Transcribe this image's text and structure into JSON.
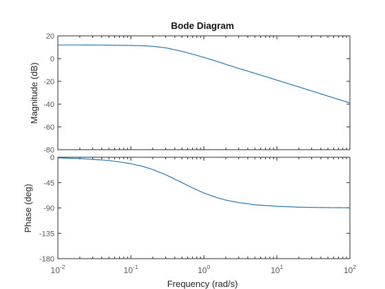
{
  "chart_data": {
    "type": "line",
    "title": "Bode Diagram",
    "xlabel": "Frequency  (rad/s)",
    "xscale": "log",
    "xlim": [
      0.01,
      100
    ],
    "xticks": [
      {
        "value": 0.01,
        "base": "10",
        "exp": "-2"
      },
      {
        "value": 0.1,
        "base": "10",
        "exp": "-1"
      },
      {
        "value": 1,
        "base": "10",
        "exp": "0"
      },
      {
        "value": 10,
        "base": "10",
        "exp": "1"
      },
      {
        "value": 100,
        "base": "10",
        "exp": "2"
      }
    ],
    "line_color": "#1f77b4",
    "grid": false,
    "panels": [
      {
        "ylabel": "Magnitude (dB)",
        "ylim": [
          -80,
          20
        ],
        "yticks": [
          20,
          0,
          -20,
          -40,
          -60,
          -80
        ],
        "series": [
          {
            "x": [
              0.01,
              0.02,
              0.05,
              0.1,
              0.15,
              0.2,
              0.3,
              0.5,
              0.7,
              1,
              1.5,
              2,
              3,
              5,
              10,
              20,
              50,
              100
            ],
            "y": [
              12,
              12,
              11.9,
              11.6,
              11.3,
              10.8,
              9.5,
              6.4,
              3.9,
              1.1,
              -2.4,
              -5.0,
              -8.6,
              -12.9,
              -18.9,
              -24.9,
              -32.9,
              -38.9
            ]
          }
        ]
      },
      {
        "ylabel": "Phase (deg)",
        "ylim": [
          -180,
          0
        ],
        "yticks": [
          0,
          -45,
          -90,
          -135,
          -180
        ],
        "series": [
          {
            "x": [
              0.01,
              0.02,
              0.05,
              0.1,
              0.15,
              0.2,
              0.3,
              0.5,
              0.7,
              1,
              1.5,
              2,
              3,
              5,
              10,
              20,
              50,
              100
            ],
            "y": [
              -1.1,
              -2.3,
              -5.7,
              -11.3,
              -16.7,
              -21.8,
              -31.0,
              -45.0,
              -54.5,
              -63.4,
              -71.6,
              -76.0,
              -80.5,
              -84.3,
              -87.1,
              -88.6,
              -89.4,
              -89.7
            ]
          }
        ]
      }
    ]
  }
}
